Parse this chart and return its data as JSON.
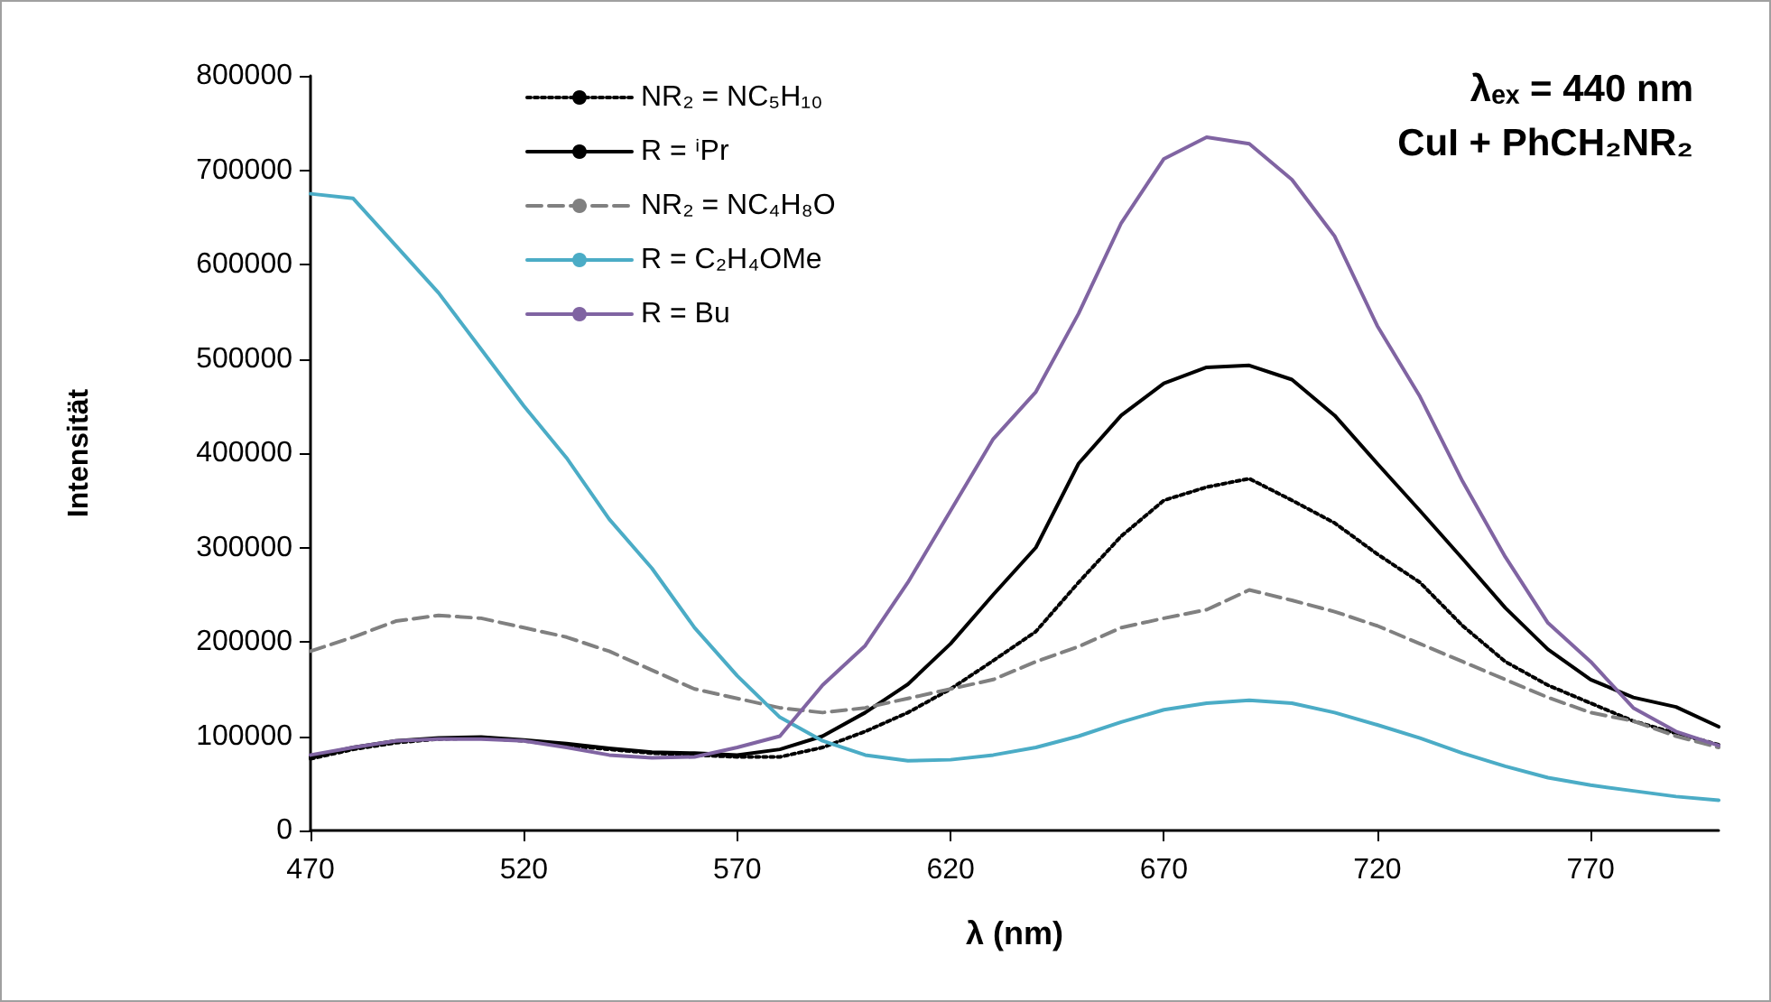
{
  "chart_data": {
    "type": "line",
    "xlabel": "λ (nm)",
    "ylabel": "Intensität",
    "annotations": [
      "λₑₓ = 440 nm",
      "CuI + PhCH₂NR₂"
    ],
    "x": [
      470,
      480,
      490,
      500,
      510,
      520,
      530,
      540,
      550,
      560,
      570,
      580,
      590,
      600,
      610,
      620,
      630,
      640,
      650,
      660,
      670,
      680,
      690,
      700,
      710,
      720,
      730,
      740,
      750,
      760,
      770,
      780,
      790,
      800
    ],
    "series": [
      {
        "name": "NR₂ = NC₅H₁₀",
        "color": "#000000",
        "line_style": "dotted",
        "values": [
          76000,
          86000,
          93000,
          97000,
          98000,
          95000,
          90000,
          86000,
          82000,
          80000,
          78000,
          78000,
          88000,
          105000,
          125000,
          150000,
          180000,
          211000,
          263000,
          312000,
          350000,
          364000,
          373000,
          350000,
          326000,
          293000,
          263000,
          217000,
          179000,
          154000,
          135000,
          116000,
          103000,
          91000
        ]
      },
      {
        "name": "R = ⁱPr",
        "color": "#000000",
        "line_style": "solid",
        "values": [
          78000,
          88000,
          95000,
          98000,
          99000,
          96000,
          92000,
          87000,
          83000,
          82000,
          80000,
          86000,
          100000,
          125000,
          155000,
          198000,
          250000,
          300000,
          389000,
          440000,
          474000,
          491000,
          493000,
          478000,
          440000,
          389000,
          339000,
          288000,
          236000,
          192000,
          160000,
          141000,
          131000,
          110000
        ]
      },
      {
        "name": "NR₂ = NC₄H₈O",
        "color": "#808080",
        "line_style": "dashed",
        "values": [
          190000,
          205000,
          222000,
          228000,
          225000,
          215000,
          205000,
          190000,
          170000,
          150000,
          140000,
          130000,
          125000,
          130000,
          140000,
          150000,
          160000,
          179000,
          195000,
          215000,
          225000,
          234000,
          255000,
          244000,
          232000,
          217000,
          198000,
          179000,
          160000,
          141000,
          125000,
          116000,
          100000,
          88000
        ]
      },
      {
        "name": "R = C₂H₄OMe",
        "color": "#4bacc6",
        "line_style": "solid",
        "values": [
          675000,
          670000,
          620000,
          570000,
          510000,
          450000,
          395000,
          330000,
          278000,
          215000,
          164000,
          120000,
          95000,
          80000,
          74000,
          75000,
          80000,
          88000,
          100000,
          115000,
          128000,
          135000,
          138000,
          135000,
          125000,
          112000,
          98000,
          82000,
          68000,
          56000,
          48000,
          42000,
          36000,
          32000
        ]
      },
      {
        "name": "R = Bu",
        "color": "#8064a2",
        "line_style": "solid",
        "values": [
          80000,
          88000,
          95000,
          97000,
          97000,
          95000,
          88000,
          80000,
          77000,
          78000,
          88000,
          100000,
          154000,
          196000,
          263000,
          339000,
          415000,
          465000,
          548000,
          644000,
          712000,
          735000,
          728000,
          690000,
          630000,
          535000,
          460000,
          370000,
          290000,
          220000,
          179000,
          130000,
          105000,
          90000
        ]
      }
    ],
    "xlim": [
      470,
      800
    ],
    "xticks": [
      470,
      520,
      570,
      620,
      670,
      720,
      770
    ],
    "ylim": [
      0,
      800000
    ],
    "yticks": [
      0,
      100000,
      200000,
      300000,
      400000,
      500000,
      600000,
      700000,
      800000
    ],
    "grid": false,
    "legend": "top left",
    "marker": "none"
  }
}
